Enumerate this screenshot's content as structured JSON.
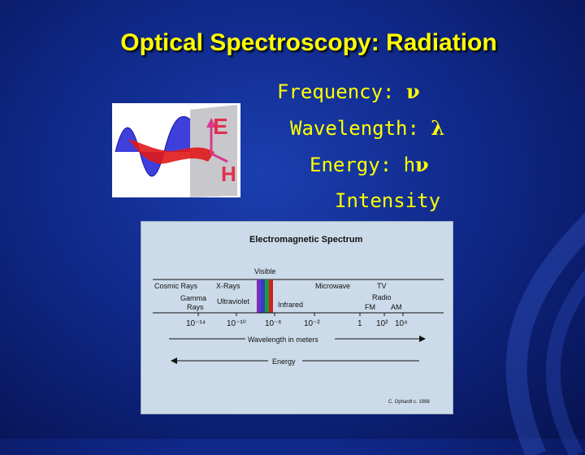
{
  "slide": {
    "title": "Optical Spectroscopy: Radiation",
    "properties": [
      {
        "label": "Frequency:",
        "symbol": "ν"
      },
      {
        "label": "Wavelength:",
        "symbol": "λ"
      },
      {
        "label": "Energy: h",
        "symbol": "ν"
      },
      {
        "label": "Intensity",
        "symbol": ""
      }
    ]
  },
  "wave": {
    "e_label": "E",
    "h_label": "H"
  },
  "spectrum": {
    "title": "Electromagnetic Spectrum",
    "visible_label": "Visible",
    "regions": {
      "cosmic_rays": "Cosmic Rays",
      "x_rays": "X-Rays",
      "microwave": "Microwave",
      "tv": "TV",
      "radio": "Radio",
      "gamma": "Gamma",
      "rays": "Rays",
      "ultraviolet": "Ultraviolet",
      "infrared": "Infrared",
      "fm": "FM",
      "am": "AM"
    },
    "ticks": [
      "10⁻¹⁴",
      "10⁻¹⁰",
      "10⁻⁶",
      "10⁻²",
      "1",
      "10²",
      "10⁴"
    ],
    "wavelength_label": "Wavelength in meters",
    "energy_label": "Energy",
    "credit": "C. Ophardt c. 1998",
    "colors": {
      "violet": "#7a2fb8",
      "blue": "#2a3fd0",
      "green": "#1e9a3a",
      "red": "#d02020"
    }
  }
}
